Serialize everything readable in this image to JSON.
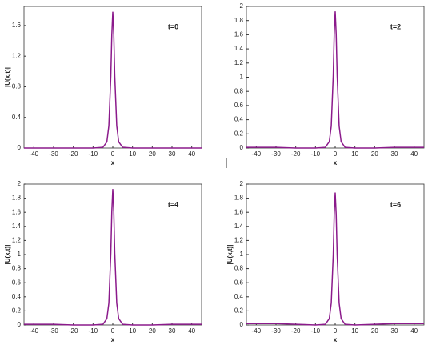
{
  "chart_data": [
    {
      "type": "line",
      "annotation": "t=0",
      "x_label": "x",
      "y_label": "|U(x,t)|",
      "x": [
        -45,
        -40,
        -30,
        -20,
        -10,
        -5,
        -3,
        -2,
        -1,
        -0.5,
        0,
        0.5,
        1,
        2,
        3,
        5,
        10,
        20,
        30,
        40,
        45
      ],
      "series": [
        {
          "color": "#8b1a8b",
          "values": [
            0,
            0,
            0,
            0,
            0,
            0.01,
            0.08,
            0.29,
            0.94,
            1.48,
            1.78,
            1.48,
            0.94,
            0.29,
            0.08,
            0.01,
            0,
            0,
            0,
            0,
            0
          ]
        }
      ],
      "xlim": [
        -45,
        45
      ],
      "xticks": [
        -40,
        -30,
        -20,
        -10,
        0,
        10,
        20,
        30,
        40
      ],
      "ylim": [
        0,
        1.85
      ],
      "yticks": [
        0,
        0.4,
        0.8,
        1.2,
        1.6
      ]
    },
    {
      "type": "line",
      "annotation": "t=2",
      "x_label": "x",
      "x": [
        -45,
        -40,
        -30,
        -20,
        -10,
        -5,
        -3,
        -2,
        -1,
        -0.5,
        0,
        0.5,
        1,
        2,
        3,
        5,
        10,
        20,
        30,
        40,
        45
      ],
      "series": [
        {
          "color": "#8b1a8b",
          "values": [
            0.01,
            0.01,
            0.01,
            0,
            0,
            0.01,
            0.09,
            0.31,
            1.02,
            1.61,
            1.93,
            1.61,
            1.02,
            0.31,
            0.09,
            0.01,
            0,
            0,
            0.01,
            0.01,
            0.01
          ]
        }
      ],
      "xlim": [
        -45,
        45
      ],
      "xticks": [
        -40,
        -30,
        -20,
        -10,
        0,
        10,
        20,
        30,
        40
      ],
      "ylim": [
        0,
        2
      ],
      "yticks": [
        0,
        0.2,
        0.4,
        0.6,
        0.8,
        1,
        1.2,
        1.4,
        1.6,
        1.8,
        2
      ]
    },
    {
      "type": "line",
      "annotation": "t=4",
      "x_label": "x",
      "y_label": "|U(x,t)|",
      "x": [
        -45,
        -40,
        -30,
        -20,
        -10,
        -5,
        -3,
        -2,
        -1,
        -0.5,
        0,
        0.5,
        1,
        2,
        3,
        5,
        10,
        20,
        30,
        40,
        45
      ],
      "series": [
        {
          "color": "#8b1a8b",
          "values": [
            0.01,
            0.01,
            0.01,
            0,
            0,
            0.01,
            0.09,
            0.31,
            1.02,
            1.61,
            1.93,
            1.61,
            1.02,
            0.31,
            0.09,
            0.01,
            0,
            0,
            0.01,
            0.01,
            0.01
          ]
        }
      ],
      "xlim": [
        -45,
        45
      ],
      "xticks": [
        -40,
        -30,
        -20,
        -10,
        0,
        10,
        20,
        30,
        40
      ],
      "ylim": [
        0,
        2
      ],
      "yticks": [
        0,
        0.2,
        0.4,
        0.6,
        0.8,
        1,
        1.2,
        1.4,
        1.6,
        1.8,
        2
      ]
    },
    {
      "type": "line",
      "annotation": "t=6",
      "x_label": "x",
      "y_label": "|U(x,t)|",
      "x": [
        -45,
        -40,
        -30,
        -20,
        -10,
        -5,
        -3,
        -2,
        -1,
        -0.5,
        0,
        0.5,
        1,
        2,
        3,
        5,
        10,
        20,
        30,
        40,
        45
      ],
      "series": [
        {
          "color": "#8b1a8b",
          "values": [
            0.02,
            0.02,
            0.02,
            0.01,
            0,
            0.01,
            0.09,
            0.31,
            0.99,
            1.57,
            1.88,
            1.57,
            0.99,
            0.31,
            0.09,
            0.01,
            0,
            0.01,
            0.02,
            0.02,
            0.02
          ]
        }
      ],
      "xlim": [
        -45,
        45
      ],
      "xticks": [
        -40,
        -30,
        -20,
        -10,
        0,
        10,
        20,
        30,
        40
      ],
      "ylim": [
        0,
        2
      ],
      "yticks": [
        0,
        0.2,
        0.4,
        0.6,
        0.8,
        1,
        1.2,
        1.4,
        1.6,
        1.8,
        2
      ]
    }
  ]
}
